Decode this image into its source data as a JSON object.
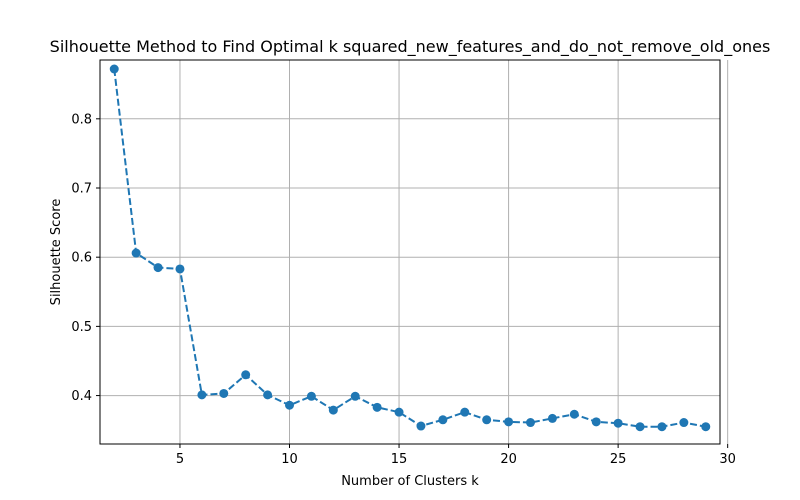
{
  "chart_data": {
    "type": "line",
    "title": "Silhouette Method to Find Optimal k squared_new_features_and_do_not_remove_old_ones",
    "xlabel": "Number of Clusters k",
    "ylabel": "Silhouette Score",
    "xlim": [
      1.35,
      29.65
    ],
    "ylim": [
      0.33,
      0.885
    ],
    "xticks": [
      5,
      10,
      15,
      20,
      25,
      30
    ],
    "yticks": [
      0.4,
      0.5,
      0.6,
      0.7,
      0.8
    ],
    "xtick_labels": [
      "5",
      "10",
      "15",
      "20",
      "25",
      "30"
    ],
    "ytick_labels": [
      "0.4",
      "0.5",
      "0.6",
      "0.7",
      "0.8"
    ],
    "grid": true,
    "line_style": "dashed",
    "marker": "circle",
    "color": "#1f77b4",
    "x": [
      2,
      3,
      4,
      5,
      6,
      7,
      8,
      9,
      10,
      11,
      12,
      13,
      14,
      15,
      16,
      17,
      18,
      19,
      20,
      21,
      22,
      23,
      24,
      25,
      26,
      27,
      28,
      29
    ],
    "y": [
      0.872,
      0.606,
      0.585,
      0.583,
      0.401,
      0.403,
      0.43,
      0.401,
      0.386,
      0.399,
      0.379,
      0.399,
      0.383,
      0.376,
      0.356,
      0.365,
      0.376,
      0.365,
      0.362,
      0.361,
      0.367,
      0.373,
      0.362,
      0.36,
      0.355,
      0.355,
      0.361,
      0.355
    ]
  }
}
